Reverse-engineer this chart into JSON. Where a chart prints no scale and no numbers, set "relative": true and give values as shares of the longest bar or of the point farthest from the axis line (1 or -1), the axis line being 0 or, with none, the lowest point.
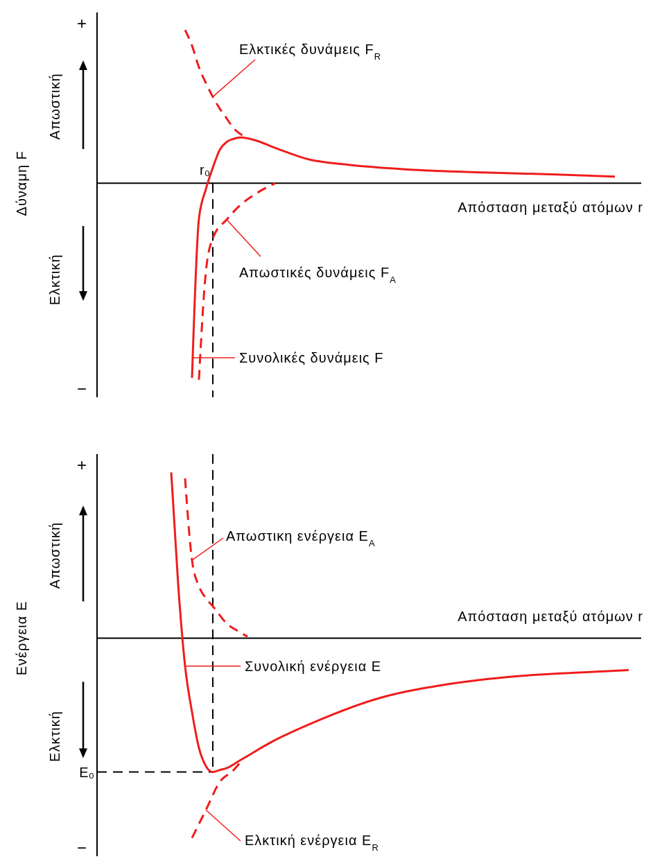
{
  "chart_data": [
    {
      "type": "line",
      "relative": true,
      "ylabel": "Δύναμη F",
      "xlabel": "Απόσταση μεταξύ ατόμων r",
      "annotations": [
        "+",
        "Απωστική",
        "Ελκτική",
        "−",
        "r₀"
      ],
      "categories": [
        null,
        null,
        null,
        null,
        null,
        null,
        null,
        null,
        null,
        null,
        null,
        null,
        null,
        null,
        null,
        null,
        null,
        null,
        null,
        null,
        null,
        null,
        null,
        null,
        null,
        null,
        null,
        null,
        null,
        null,
        null,
        null,
        null,
        null,
        null,
        null,
        null,
        null,
        null,
        null,
        null,
        null,
        null,
        null,
        null,
        null,
        null,
        null,
        null,
        null,
        null,
        null,
        null,
        null,
        null,
        null,
        null,
        null,
        null,
        null,
        null,
        null,
        null,
        null,
        null,
        null,
        null,
        null,
        null,
        null,
        null,
        null,
        null,
        null,
        null,
        null,
        null,
        null
      ],
      "series": [
        {
          "name": "Ελκτικές δυνάμεις F$_{R}$",
          "color": "#f01c1c",
          "line_style": "dashed",
          "values": [
            null,
            null,
            null,
            null,
            null,
            null,
            null,
            null,
            null,
            null,
            null,
            null,
            0.78,
            0.7,
            0.59,
            0.51,
            0.44,
            0.38,
            0.33,
            0.28,
            0.25,
            0.233,
            null,
            null,
            null,
            null,
            null,
            null,
            null,
            null,
            null,
            null,
            null,
            null,
            null,
            null,
            null,
            null,
            null,
            null,
            null,
            null,
            null,
            null,
            null,
            null,
            null,
            null,
            null,
            null,
            null,
            null,
            null,
            null,
            null,
            null,
            null,
            null,
            null,
            null,
            null,
            null,
            null,
            null,
            null,
            null,
            null,
            null,
            null,
            null,
            null,
            null,
            null,
            null,
            null,
            null,
            null,
            null
          ]
        },
        {
          "name": "Απωστικές δυνάμεις F$_{A}$",
          "color": "#f01c1c",
          "line_style": "dashed",
          "values": [
            null,
            null,
            null,
            null,
            null,
            null,
            null,
            null,
            null,
            null,
            null,
            null,
            null,
            null,
            -1.0,
            -0.45,
            -0.28,
            null,
            -0.185,
            null,
            -0.11,
            null,
            -0.058,
            null,
            -0.017,
            0,
            null,
            null,
            null,
            null,
            null,
            null,
            null,
            null,
            null,
            null,
            null,
            null,
            null,
            null,
            null,
            null,
            null,
            null,
            null,
            null,
            null,
            null,
            null,
            null,
            null,
            null,
            null,
            null,
            null,
            null,
            null,
            null,
            null,
            null,
            null,
            null,
            null,
            null,
            null,
            null,
            null,
            null,
            null,
            null,
            null,
            null,
            null,
            null,
            null,
            null,
            null,
            null
          ]
        },
        {
          "name": "Συνολικές δυνάμεις F",
          "color": "#f01c1c",
          "line_style": "solid",
          "values": [
            null,
            null,
            null,
            null,
            null,
            null,
            null,
            null,
            null,
            null,
            null,
            null,
            null,
            -0.99,
            -0.18,
            -0.03,
            0.079,
            0.17,
            0.21,
            0.226,
            0.233,
            null,
            0.22,
            null,
            null,
            0.18,
            null,
            null,
            null,
            null,
            0.12,
            null,
            null,
            null,
            null,
            0.096,
            null,
            null,
            null,
            null,
            null,
            null,
            null,
            null,
            null,
            0.068,
            null,
            null,
            null,
            null,
            null,
            null,
            null,
            null,
            null,
            0.055,
            null,
            null,
            null,
            null,
            null,
            null,
            null,
            null,
            null,
            0.045,
            null,
            null,
            null,
            null,
            null,
            null,
            null,
            null,
            0.034,
            null,
            null,
            null
          ]
        }
      ]
    },
    {
      "type": "line",
      "relative": true,
      "ylabel": "Ενέργεια E",
      "xlabel": "Απόσταση μεταξύ ατόμων r",
      "annotations": [
        "+",
        "Απωστική",
        "Ελκτική",
        "−"
      ],
      "categories": [
        null,
        null,
        null,
        null,
        null,
        null,
        null,
        null,
        null,
        null,
        null,
        null,
        null,
        null,
        null,
        null,
        null,
        null,
        null,
        null,
        null,
        null,
        null,
        null,
        null,
        null,
        null,
        null,
        null,
        null,
        null,
        null,
        null,
        null,
        null,
        null,
        null,
        null,
        null,
        null,
        null,
        null,
        null,
        null,
        null,
        null,
        null,
        null,
        null,
        null,
        null,
        null,
        null,
        null,
        null,
        null,
        null,
        null,
        null,
        null,
        null,
        null,
        null,
        null,
        null,
        null,
        null,
        null,
        null,
        null,
        null,
        null,
        null,
        null,
        null,
        null,
        null,
        null
      ],
      "ref_lines": [
        {
          "axis": "y",
          "value": -0.67,
          "label": "E₀",
          "color": "#000000",
          "line_style": "dashed"
        }
      ],
      "series": [
        {
          "name": "Απωστικη ενέργεια E$_{A}$",
          "color": "#f01c1c",
          "line_style": "dashed",
          "values": [
            null,
            null,
            null,
            null,
            null,
            null,
            null,
            null,
            null,
            null,
            null,
            null,
            0.8,
            0.39,
            0.26,
            0.2,
            0.16,
            null,
            0.074,
            null,
            0.028,
            0.008,
            null,
            null,
            null,
            null,
            null,
            null,
            null,
            null,
            null,
            null,
            null,
            null,
            null,
            null,
            null,
            null,
            null,
            null,
            null,
            null,
            null,
            null,
            null,
            null,
            null,
            null,
            null,
            null,
            null,
            null,
            null,
            null,
            null,
            null,
            null,
            null,
            null,
            null,
            null,
            null,
            null,
            null,
            null,
            null,
            null,
            null,
            null,
            null,
            null,
            null,
            null,
            null,
            null,
            null,
            null,
            null
          ]
        },
        {
          "name": "Συνολική ενέργεια E",
          "color": "#f01c1c",
          "line_style": "solid",
          "values": [
            null,
            null,
            null,
            null,
            null,
            null,
            null,
            null,
            null,
            null,
            0.83,
            0.27,
            -0.14,
            -0.37,
            -0.55,
            -0.64,
            -0.67,
            -0.66,
            -0.65,
            null,
            -0.61,
            null,
            null,
            null,
            null,
            -0.51,
            null,
            null,
            null,
            null,
            -0.43,
            null,
            null,
            null,
            null,
            null,
            null,
            null,
            null,
            null,
            -0.3,
            null,
            null,
            null,
            null,
            null,
            null,
            null,
            null,
            null,
            -0.23,
            null,
            null,
            null,
            null,
            null,
            null,
            null,
            null,
            null,
            -0.19,
            null,
            null,
            null,
            null,
            null,
            null,
            null,
            null,
            null,
            -0.17,
            null,
            null,
            null,
            null,
            null,
            -0.16,
            null
          ]
        },
        {
          "name": "Ελκτική ενέργεια E$_{R}$",
          "color": "#f01c1c",
          "line_style": "dashed",
          "values": [
            null,
            null,
            null,
            null,
            null,
            null,
            null,
            null,
            null,
            null,
            null,
            null,
            null,
            -1.0,
            null,
            -0.86,
            null,
            -0.72,
            null,
            -0.66,
            -0.62,
            null,
            null,
            null,
            null,
            null,
            null,
            null,
            null,
            null,
            null,
            null,
            null,
            null,
            null,
            null,
            null,
            null,
            null,
            null,
            null,
            null,
            null,
            null,
            null,
            null,
            null,
            null,
            null,
            null,
            null,
            null,
            null,
            null,
            null,
            null,
            null,
            null,
            null,
            null,
            null,
            null,
            null,
            null,
            null,
            null,
            null,
            null,
            null,
            null,
            null,
            null,
            null,
            null,
            null,
            null,
            null,
            null
          ]
        }
      ]
    }
  ]
}
